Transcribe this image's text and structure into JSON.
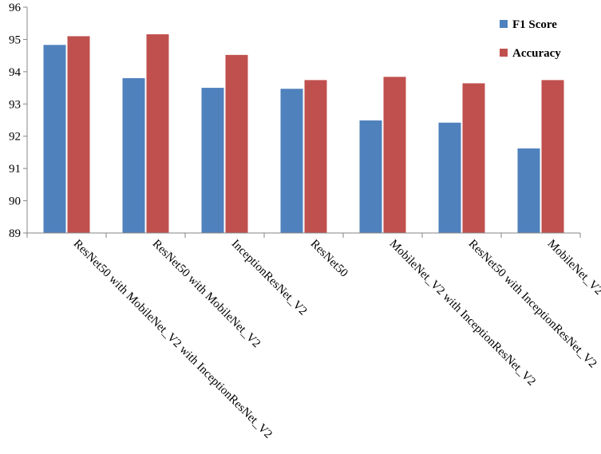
{
  "chart_data": {
    "type": "bar",
    "categories": [
      "ResNet50 with MobileNet_V2 with InceptionResNet_V2",
      "ResNet50 with MobileNet_V2",
      "InceptionResNet_V2",
      "ResNet50",
      "MobileNet_V2 with InceptionResNet_V2",
      "ResNet50 with InceptionResNet_V2",
      "MobileNet_V2"
    ],
    "series": [
      {
        "name": "F1 Score",
        "color": "#4f81bd",
        "values": [
          94.83,
          93.8,
          93.5,
          93.47,
          92.49,
          92.42,
          91.62
        ]
      },
      {
        "name": "Accuracy",
        "color": "#c0504d",
        "values": [
          95.1,
          95.16,
          94.52,
          93.74,
          93.84,
          93.64,
          93.74
        ]
      }
    ],
    "ylim": [
      89,
      96
    ],
    "yticks": [
      "89",
      "90",
      "91",
      "92",
      "93",
      "94",
      "95",
      "96"
    ],
    "grid": false,
    "legend_position": "top-right",
    "title": "",
    "xlabel": "",
    "ylabel": ""
  }
}
